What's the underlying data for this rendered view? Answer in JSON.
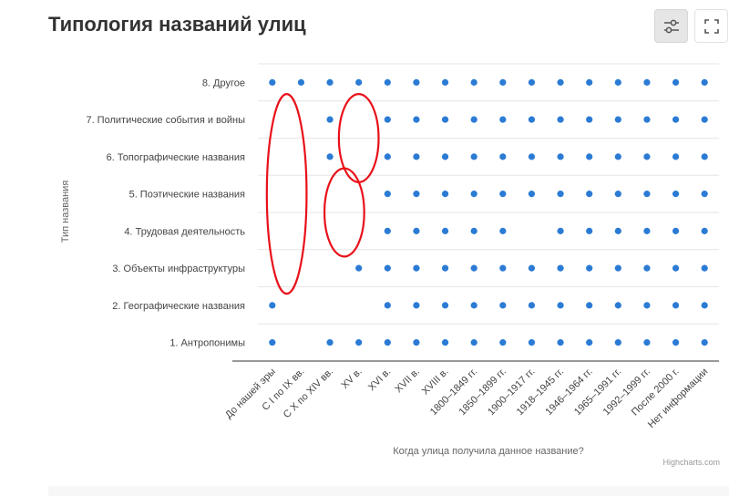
{
  "page": {
    "title": "Типология названий улиц"
  },
  "toolbar": {
    "filter_icon": "sliders-icon",
    "fullscreen_icon": "fullscreen-icon"
  },
  "credits": "Highcharts.com",
  "colors": {
    "point": "#2b7bd4",
    "highlight": "#e8111a",
    "grid": "#e6e6e6",
    "axis": "#333333",
    "label": "#444444"
  },
  "chart_data": {
    "type": "scatter",
    "title": "",
    "xlabel": "Когда улица получила данное название?",
    "ylabel": "Тип названия",
    "categories": [
      "До нашей эры",
      "С I по IX вв.",
      "С X по XIV вв.",
      "XV в.",
      "XVI в.",
      "XVII в.",
      "XVIII в.",
      "1800–1849 гг.",
      "1850–1899 гг.",
      "1900–1917 гг.",
      "1918–1945 гг.",
      "1946–1964 гг.",
      "1965–1991 гг.",
      "1992–1999 гг.",
      "После 2000 г.",
      "Нет информации"
    ],
    "y_categories": [
      "1. Антропонимы",
      "2. Географические названия",
      "3. Объекты инфраструктуры",
      "4. Трудовая деятельность",
      "5. Поэтические названия",
      "6. Топографические названия",
      "7. Политические события и войны",
      "8. Другое"
    ],
    "series": [
      {
        "values": [
          [
            0,
            0
          ],
          [
            2,
            0
          ],
          [
            3,
            0
          ],
          [
            4,
            0
          ],
          [
            5,
            0
          ],
          [
            6,
            0
          ],
          [
            7,
            0
          ],
          [
            8,
            0
          ],
          [
            9,
            0
          ],
          [
            10,
            0
          ],
          [
            11,
            0
          ],
          [
            12,
            0
          ],
          [
            13,
            0
          ],
          [
            14,
            0
          ],
          [
            15,
            0
          ],
          [
            0,
            1
          ],
          [
            4,
            1
          ],
          [
            5,
            1
          ],
          [
            6,
            1
          ],
          [
            7,
            1
          ],
          [
            8,
            1
          ],
          [
            9,
            1
          ],
          [
            10,
            1
          ],
          [
            11,
            1
          ],
          [
            12,
            1
          ],
          [
            13,
            1
          ],
          [
            14,
            1
          ],
          [
            15,
            1
          ],
          [
            3,
            2
          ],
          [
            4,
            2
          ],
          [
            5,
            2
          ],
          [
            6,
            2
          ],
          [
            7,
            2
          ],
          [
            8,
            2
          ],
          [
            9,
            2
          ],
          [
            10,
            2
          ],
          [
            11,
            2
          ],
          [
            12,
            2
          ],
          [
            13,
            2
          ],
          [
            14,
            2
          ],
          [
            15,
            2
          ],
          [
            4,
            3
          ],
          [
            5,
            3
          ],
          [
            6,
            3
          ],
          [
            7,
            3
          ],
          [
            8,
            3
          ],
          [
            10,
            3
          ],
          [
            11,
            3
          ],
          [
            12,
            3
          ],
          [
            13,
            3
          ],
          [
            14,
            3
          ],
          [
            15,
            3
          ],
          [
            4,
            4
          ],
          [
            5,
            4
          ],
          [
            6,
            4
          ],
          [
            7,
            4
          ],
          [
            8,
            4
          ],
          [
            9,
            4
          ],
          [
            10,
            4
          ],
          [
            11,
            4
          ],
          [
            12,
            4
          ],
          [
            13,
            4
          ],
          [
            14,
            4
          ],
          [
            15,
            4
          ],
          [
            2,
            5
          ],
          [
            4,
            5
          ],
          [
            5,
            5
          ],
          [
            6,
            5
          ],
          [
            7,
            5
          ],
          [
            8,
            5
          ],
          [
            9,
            5
          ],
          [
            10,
            5
          ],
          [
            11,
            5
          ],
          [
            12,
            5
          ],
          [
            13,
            5
          ],
          [
            14,
            5
          ],
          [
            15,
            5
          ],
          [
            2,
            6
          ],
          [
            4,
            6
          ],
          [
            5,
            6
          ],
          [
            6,
            6
          ],
          [
            7,
            6
          ],
          [
            8,
            6
          ],
          [
            9,
            6
          ],
          [
            10,
            6
          ],
          [
            11,
            6
          ],
          [
            12,
            6
          ],
          [
            13,
            6
          ],
          [
            14,
            6
          ],
          [
            15,
            6
          ],
          [
            0,
            7
          ],
          [
            1,
            7
          ],
          [
            2,
            7
          ],
          [
            3,
            7
          ],
          [
            4,
            7
          ],
          [
            5,
            7
          ],
          [
            6,
            7
          ],
          [
            7,
            7
          ],
          [
            8,
            7
          ],
          [
            9,
            7
          ],
          [
            10,
            7
          ],
          [
            11,
            7
          ],
          [
            12,
            7
          ],
          [
            13,
            7
          ],
          [
            14,
            7
          ],
          [
            15,
            7
          ]
        ]
      }
    ],
    "annotations": [
      {
        "shape": "ellipse",
        "x_range": [
          0,
          1
        ],
        "y_range": [
          2,
          6
        ]
      },
      {
        "shape": "ellipse",
        "x_range": [
          2.5,
          3.5
        ],
        "y_range": [
          5,
          6
        ]
      },
      {
        "shape": "ellipse",
        "x_range": [
          2,
          3
        ],
        "y_range": [
          3,
          4
        ]
      }
    ],
    "grid": true,
    "legend": "none"
  }
}
